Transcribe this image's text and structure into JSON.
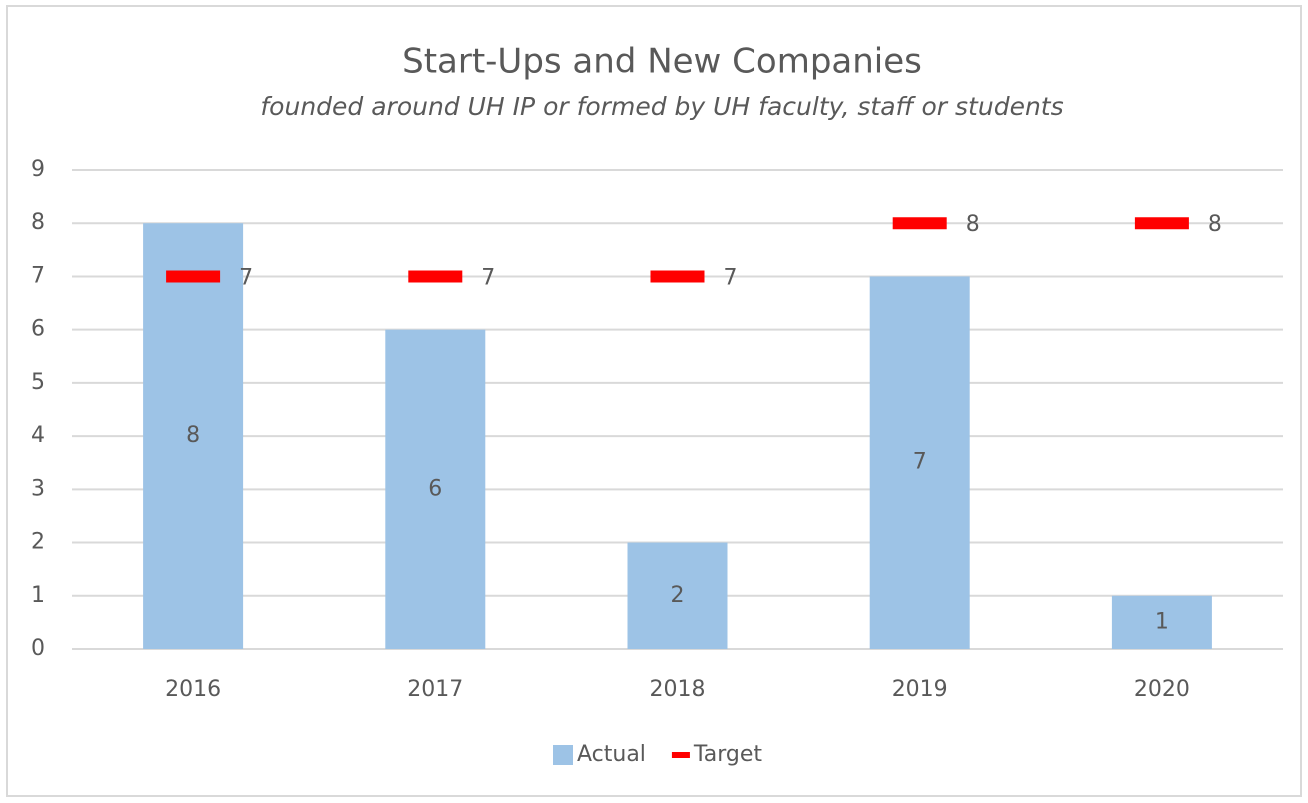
{
  "chart_data": {
    "type": "bar",
    "title": "Start-Ups and New Companies",
    "subtitle": "founded around UH IP or formed by UH faculty, staff or students",
    "categories": [
      "2016",
      "2017",
      "2018",
      "2019",
      "2020"
    ],
    "series": [
      {
        "name": "Actual",
        "color": "#9dc3e6",
        "style": "bar",
        "values": [
          8,
          6,
          2,
          7,
          1
        ]
      },
      {
        "name": "Target",
        "color": "#ff0000",
        "style": "dash",
        "values": [
          7,
          7,
          7,
          8,
          8
        ]
      }
    ],
    "ylim": [
      0,
      9
    ],
    "yticks": [
      0,
      1,
      2,
      3,
      4,
      5,
      6,
      7,
      8,
      9
    ],
    "grid": true,
    "legend": "bottom"
  }
}
